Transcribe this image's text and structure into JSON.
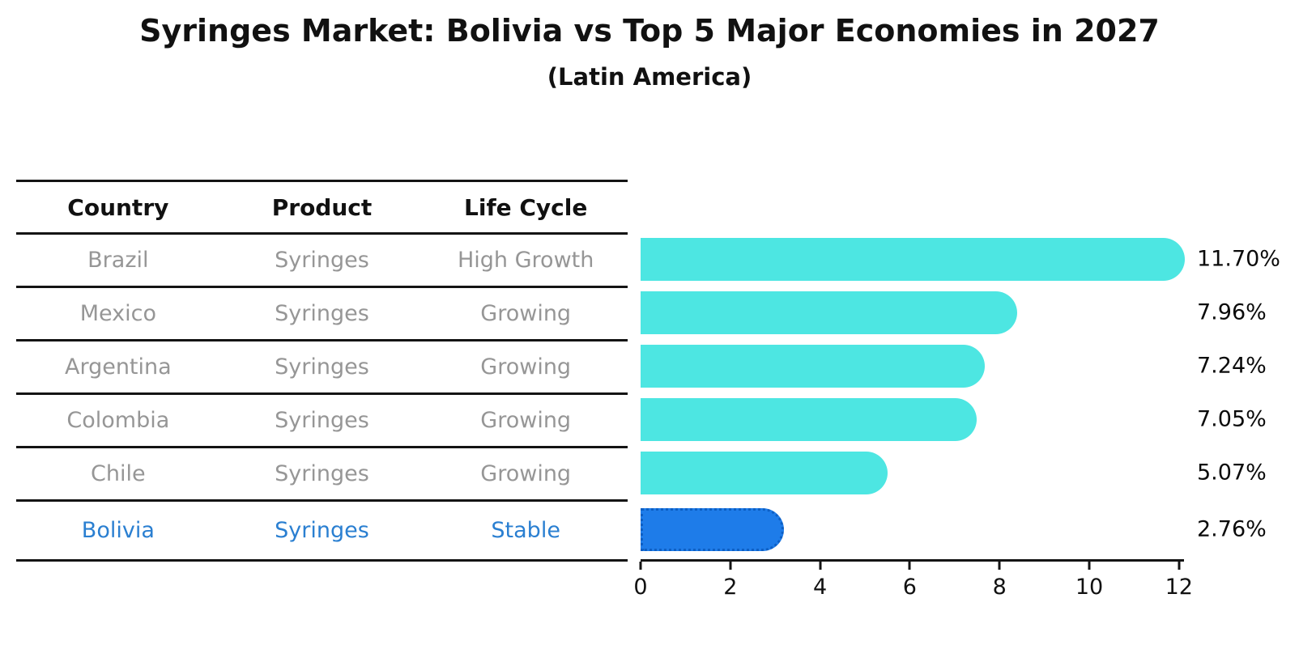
{
  "chart_data": {
    "type": "bar",
    "orientation": "horizontal",
    "title": "Syringes Market: Bolivia vs Top 5 Major Economies in 2027",
    "subtitle": "(Latin America)",
    "categories": [
      "Brazil",
      "Mexico",
      "Argentina",
      "Colombia",
      "Chile",
      "Bolivia"
    ],
    "values": [
      11.7,
      7.96,
      7.24,
      7.05,
      5.07,
      2.76
    ],
    "value_labels": [
      "11.70%",
      "7.96%",
      "7.24%",
      "7.05%",
      "5.07%",
      "2.76%"
    ],
    "x_ticks": [
      0,
      2,
      4,
      6,
      8,
      10,
      12
    ],
    "xlim": [
      0,
      12
    ],
    "grid": false,
    "legend": "none",
    "bar_color": "#4DE6E2",
    "highlight_index": 5,
    "highlight_color": "#1E7CE9",
    "highlight_border_color": "#0D5FC4"
  },
  "table": {
    "headers": [
      "Country",
      "Product",
      "Life Cycle"
    ],
    "rows": [
      {
        "country": "Brazil",
        "product": "Syringes",
        "life_cycle": "High Growth",
        "highlight": false
      },
      {
        "country": "Mexico",
        "product": "Syringes",
        "life_cycle": "Growing",
        "highlight": false
      },
      {
        "country": "Argentina",
        "product": "Syringes",
        "life_cycle": "Growing",
        "highlight": false
      },
      {
        "country": "Colombia",
        "product": "Syringes",
        "life_cycle": "Growing",
        "highlight": false
      },
      {
        "country": "Chile",
        "product": "Syringes",
        "life_cycle": "Growing",
        "highlight": false
      },
      {
        "country": "Bolivia",
        "product": "Syringes",
        "life_cycle": "Stable",
        "highlight": true
      }
    ]
  },
  "colors": {
    "title_text": "#111111",
    "muted_text": "#969696",
    "highlight_text": "#2A7FD1",
    "bar": "#4DE6E2",
    "highlight_bar": "#1E7CE9",
    "highlight_bar_border": "#0D5FC4",
    "rule_lines": "#141414"
  }
}
